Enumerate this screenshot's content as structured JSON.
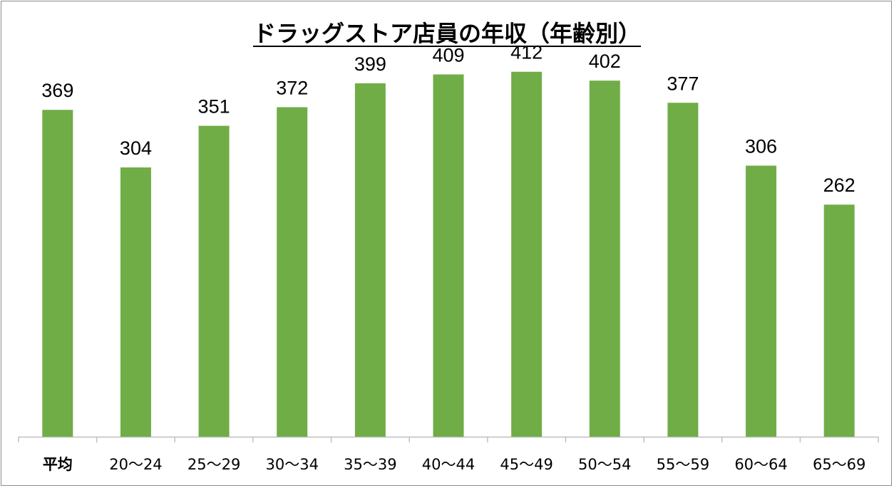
{
  "chart_data": {
    "type": "bar",
    "title": "ドラッグストア店員の年収（年齢別）",
    "xlabel": "",
    "ylabel": "",
    "categories": [
      "平均",
      "20〜24",
      "25〜29",
      "30〜34",
      "35〜39",
      "40〜44",
      "45〜49",
      "50〜54",
      "55〜59",
      "60〜64",
      "65〜69"
    ],
    "values": [
      369,
      304,
      351,
      372,
      399,
      409,
      412,
      402,
      377,
      306,
      262
    ],
    "ylim": [
      0,
      450
    ],
    "bar_color": "#70ad47",
    "grid": false,
    "legend": "none"
  }
}
